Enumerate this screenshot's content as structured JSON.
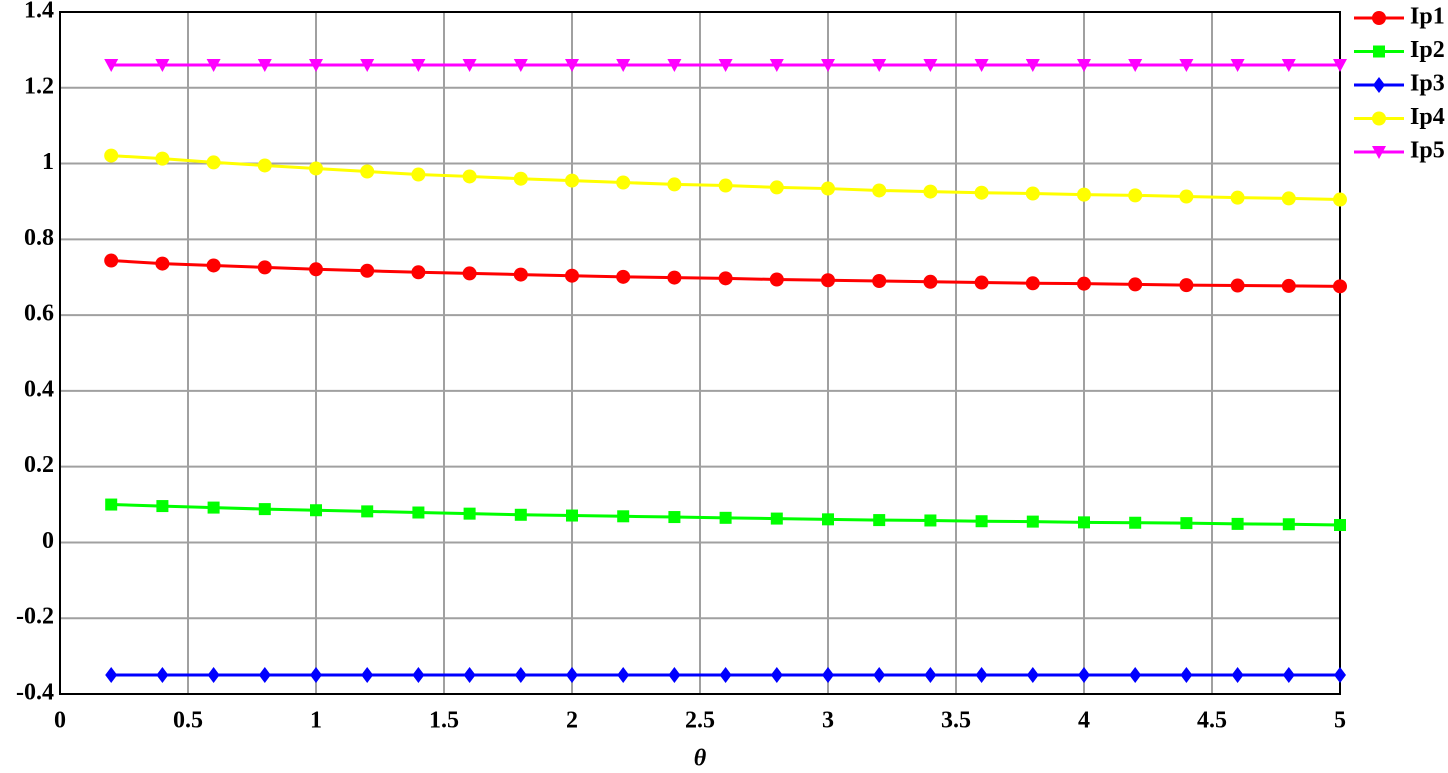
{
  "chart_data": {
    "type": "line",
    "xlabel": "θ",
    "x": [
      0.2,
      0.4,
      0.6,
      0.8,
      1.0,
      1.2,
      1.4,
      1.6,
      1.8,
      2.0,
      2.2,
      2.4,
      2.6,
      2.8,
      3.0,
      3.2,
      3.4,
      3.6,
      3.8,
      4.0,
      4.2,
      4.4,
      4.6,
      4.8,
      5.0
    ],
    "series": [
      {
        "name": "Ip1",
        "color": "#ff0000",
        "marker": "circle",
        "values": [
          0.744,
          0.736,
          0.731,
          0.726,
          0.721,
          0.717,
          0.713,
          0.71,
          0.707,
          0.704,
          0.701,
          0.699,
          0.697,
          0.694,
          0.692,
          0.69,
          0.688,
          0.686,
          0.684,
          0.683,
          0.681,
          0.679,
          0.678,
          0.677,
          0.676
        ]
      },
      {
        "name": "Ip2",
        "color": "#00ff00",
        "marker": "square",
        "values": [
          0.1,
          0.096,
          0.092,
          0.088,
          0.085,
          0.082,
          0.079,
          0.076,
          0.073,
          0.071,
          0.069,
          0.067,
          0.065,
          0.063,
          0.061,
          0.059,
          0.058,
          0.056,
          0.055,
          0.053,
          0.052,
          0.051,
          0.049,
          0.048,
          0.046
        ]
      },
      {
        "name": "Ip3",
        "color": "#0000ff",
        "marker": "diamond",
        "values": [
          -0.35,
          -0.35,
          -0.35,
          -0.35,
          -0.35,
          -0.35,
          -0.35,
          -0.35,
          -0.35,
          -0.35,
          -0.35,
          -0.35,
          -0.35,
          -0.35,
          -0.35,
          -0.35,
          -0.35,
          -0.35,
          -0.35,
          -0.35,
          -0.35,
          -0.35,
          -0.35,
          -0.35,
          -0.35
        ]
      },
      {
        "name": "Ip4",
        "color": "#ffff00",
        "marker": "circle",
        "values": [
          1.021,
          1.013,
          1.003,
          0.995,
          0.987,
          0.979,
          0.971,
          0.966,
          0.96,
          0.955,
          0.95,
          0.945,
          0.942,
          0.937,
          0.934,
          0.929,
          0.926,
          0.923,
          0.921,
          0.918,
          0.916,
          0.913,
          0.91,
          0.908,
          0.905
        ]
      },
      {
        "name": "Ip5",
        "color": "#ff00ff",
        "marker": "triangle-down",
        "values": [
          1.26,
          1.26,
          1.26,
          1.26,
          1.26,
          1.26,
          1.26,
          1.26,
          1.26,
          1.26,
          1.26,
          1.26,
          1.26,
          1.26,
          1.26,
          1.26,
          1.26,
          1.26,
          1.26,
          1.26,
          1.26,
          1.26,
          1.26,
          1.26,
          1.26
        ]
      }
    ],
    "xlim": [
      0,
      5
    ],
    "xticks": [
      0,
      0.5,
      1,
      1.5,
      2,
      2.5,
      3,
      3.5,
      4,
      4.5,
      5
    ],
    "ylim": [
      -0.4,
      1.4
    ],
    "yticks": [
      -0.4,
      -0.2,
      0,
      0.2,
      0.4,
      0.6,
      0.8,
      1,
      1.2,
      1.4
    ],
    "grid": true,
    "legend_position": "outside-top-right"
  }
}
